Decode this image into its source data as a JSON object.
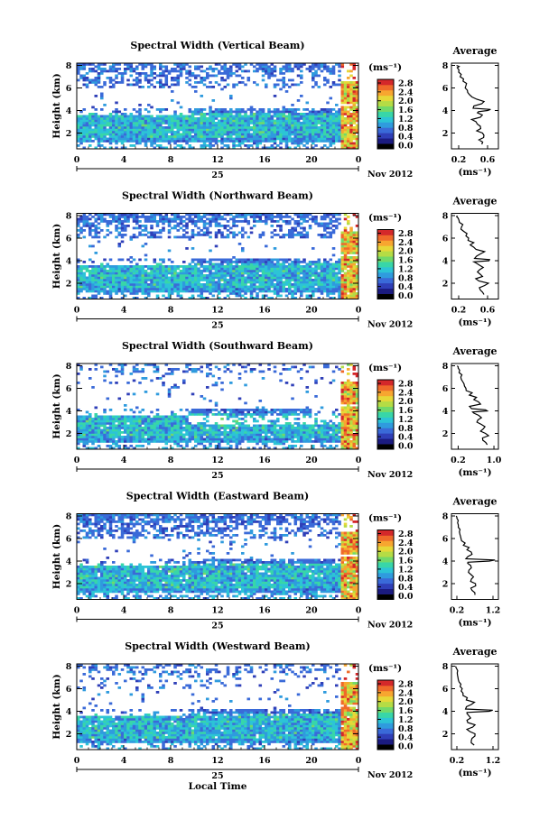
{
  "figure": {
    "date_label": "Nov 2012",
    "day_label": "25",
    "xlabel": "Local Time",
    "ylabel": "Height (km)",
    "unit_label": "(ms⁻¹)",
    "avg_title": "Average",
    "avg_xlabel": "(ms⁻¹)",
    "colormap": [
      "#000000",
      "#1b1b80",
      "#2f3fb8",
      "#3a6ad8",
      "#2f9bde",
      "#2cc4d6",
      "#38d6a8",
      "#72d96a",
      "#b5dc45",
      "#e6d838",
      "#f7a630",
      "#ef6a2a",
      "#d4282a"
    ],
    "colorbar_ticks": [
      "0.0",
      "0.4",
      "0.8",
      "1.2",
      "1.6",
      "2.0",
      "2.4",
      "2.8"
    ]
  },
  "chart_data": [
    {
      "type": "heatmap",
      "title": "Spectral Width (Vertical Beam)",
      "xlabel": "Local Time",
      "ylabel": "Height (km)",
      "x_ticks": [
        "0",
        "4",
        "8",
        "12",
        "16",
        "20",
        "0"
      ],
      "xlim": [
        0,
        24
      ],
      "y_ticks": [
        "2",
        "4",
        "6",
        "8"
      ],
      "ylim": [
        0.6,
        8.2
      ],
      "colorbar": {
        "label": "(ms⁻¹)",
        "range": [
          0.0,
          2.8
        ],
        "ticks": [
          "0.0",
          "0.4",
          "0.8",
          "1.2",
          "1.6",
          "2.0",
          "2.4",
          "2.8"
        ]
      },
      "average": {
        "title": "Average",
        "xlabel": "(ms⁻¹)",
        "x_ticks": [
          "0.2",
          "0.6"
        ],
        "xlim": [
          0.1,
          0.75
        ],
        "ylim": [
          0.6,
          8.2
        ],
        "profile": [
          [
            1.0,
            0.52
          ],
          [
            1.4,
            0.48
          ],
          [
            1.8,
            0.55
          ],
          [
            2.2,
            0.45
          ],
          [
            2.6,
            0.5
          ],
          [
            3.0,
            0.44
          ],
          [
            3.4,
            0.5
          ],
          [
            3.8,
            0.46
          ],
          [
            4.0,
            0.6
          ],
          [
            4.2,
            0.4
          ],
          [
            4.6,
            0.52
          ],
          [
            5.0,
            0.45
          ],
          [
            5.4,
            0.35
          ],
          [
            5.8,
            0.32
          ],
          [
            6.2,
            0.3
          ],
          [
            6.6,
            0.26
          ],
          [
            7.0,
            0.22
          ],
          [
            7.4,
            0.2
          ],
          [
            7.8,
            0.18
          ],
          [
            8.0,
            0.17
          ]
        ]
      }
    },
    {
      "type": "heatmap",
      "title": "Spectral Width (Northward Beam)",
      "xlabel": "Local Time",
      "ylabel": "Height (km)",
      "x_ticks": [
        "0",
        "4",
        "8",
        "12",
        "16",
        "20",
        "0"
      ],
      "xlim": [
        0,
        24
      ],
      "y_ticks": [
        "2",
        "4",
        "6",
        "8"
      ],
      "ylim": [
        0.6,
        8.2
      ],
      "colorbar": {
        "label": "(ms⁻¹)",
        "range": [
          0.0,
          2.8
        ],
        "ticks": [
          "0.0",
          "0.4",
          "0.8",
          "1.2",
          "1.6",
          "2.0",
          "2.4",
          "2.8"
        ]
      },
      "average": {
        "title": "Average",
        "xlabel": "(ms⁻¹)",
        "x_ticks": [
          "0.2",
          "0.6"
        ],
        "xlim": [
          0.1,
          0.75
        ],
        "ylim": [
          0.6,
          8.2
        ],
        "profile": [
          [
            1.0,
            0.55
          ],
          [
            1.4,
            0.5
          ],
          [
            1.8,
            0.56
          ],
          [
            2.2,
            0.48
          ],
          [
            2.6,
            0.53
          ],
          [
            3.0,
            0.46
          ],
          [
            3.4,
            0.54
          ],
          [
            3.8,
            0.44
          ],
          [
            4.0,
            0.62
          ],
          [
            4.2,
            0.42
          ],
          [
            4.6,
            0.5
          ],
          [
            5.0,
            0.44
          ],
          [
            5.4,
            0.36
          ],
          [
            5.8,
            0.33
          ],
          [
            6.2,
            0.3
          ],
          [
            6.6,
            0.27
          ],
          [
            7.0,
            0.24
          ],
          [
            7.4,
            0.21
          ],
          [
            7.8,
            0.19
          ],
          [
            8.0,
            0.18
          ]
        ]
      }
    },
    {
      "type": "heatmap",
      "title": "Spectral Width (Southward Beam)",
      "xlabel": "Local Time",
      "ylabel": "Height (km)",
      "x_ticks": [
        "0",
        "4",
        "8",
        "12",
        "16",
        "20",
        "0"
      ],
      "xlim": [
        0,
        24
      ],
      "y_ticks": [
        "2",
        "4",
        "6",
        "8"
      ],
      "ylim": [
        0.6,
        8.2
      ],
      "colorbar": {
        "label": "(ms⁻¹)",
        "range": [
          0.0,
          2.8
        ],
        "ticks": [
          "0.0",
          "0.4",
          "0.8",
          "1.2",
          "1.6",
          "2.0",
          "2.4",
          "2.8"
        ]
      },
      "average": {
        "title": "Average",
        "xlabel": "(ms⁻¹)",
        "x_ticks": [
          "0.2",
          "1.0"
        ],
        "xlim": [
          0.05,
          1.1
        ],
        "ylim": [
          0.6,
          8.2
        ],
        "profile": [
          [
            1.0,
            0.85
          ],
          [
            1.4,
            0.75
          ],
          [
            1.8,
            0.88
          ],
          [
            2.2,
            0.7
          ],
          [
            2.6,
            0.8
          ],
          [
            3.0,
            0.62
          ],
          [
            3.4,
            0.72
          ],
          [
            3.8,
            0.55
          ],
          [
            4.0,
            0.85
          ],
          [
            4.2,
            0.5
          ],
          [
            4.6,
            0.7
          ],
          [
            5.0,
            0.55
          ],
          [
            5.4,
            0.45
          ],
          [
            5.8,
            0.38
          ],
          [
            6.2,
            0.34
          ],
          [
            6.6,
            0.3
          ],
          [
            7.0,
            0.26
          ],
          [
            7.4,
            0.22
          ],
          [
            7.8,
            0.2
          ],
          [
            8.0,
            0.18
          ]
        ]
      }
    },
    {
      "type": "heatmap",
      "title": "Spectral Width (Eastward Beam)",
      "xlabel": "Local Time",
      "ylabel": "Height (km)",
      "x_ticks": [
        "0",
        "4",
        "8",
        "12",
        "16",
        "20",
        "0"
      ],
      "xlim": [
        0,
        24
      ],
      "y_ticks": [
        "2",
        "4",
        "6",
        "8"
      ],
      "ylim": [
        0.6,
        8.2
      ],
      "colorbar": {
        "label": "(ms⁻¹)",
        "range": [
          0.0,
          2.8
        ],
        "ticks": [
          "0.0",
          "0.4",
          "0.8",
          "1.2",
          "1.6",
          "2.0",
          "2.4",
          "2.8"
        ]
      },
      "average": {
        "title": "Average",
        "xlabel": "(ms⁻¹)",
        "x_ticks": [
          "0.2",
          "1.2"
        ],
        "xlim": [
          0.05,
          1.35
        ],
        "ylim": [
          0.6,
          8.2
        ],
        "profile": [
          [
            1.0,
            0.7
          ],
          [
            1.4,
            0.62
          ],
          [
            1.8,
            0.72
          ],
          [
            2.2,
            0.58
          ],
          [
            2.6,
            0.66
          ],
          [
            3.0,
            0.52
          ],
          [
            3.4,
            0.6
          ],
          [
            3.8,
            0.5
          ],
          [
            4.0,
            1.1
          ],
          [
            4.2,
            0.45
          ],
          [
            4.6,
            0.62
          ],
          [
            5.0,
            0.48
          ],
          [
            5.4,
            0.38
          ],
          [
            5.8,
            0.33
          ],
          [
            6.2,
            0.3
          ],
          [
            6.6,
            0.27
          ],
          [
            7.0,
            0.24
          ],
          [
            7.4,
            0.22
          ],
          [
            7.8,
            0.2
          ],
          [
            8.0,
            0.18
          ]
        ]
      }
    },
    {
      "type": "heatmap",
      "title": "Spectral Width (Westward Beam)",
      "xlabel": "Local Time",
      "ylabel": "Height (km)",
      "x_ticks": [
        "0",
        "4",
        "8",
        "12",
        "16",
        "20",
        "0"
      ],
      "xlim": [
        0,
        24
      ],
      "y_ticks": [
        "2",
        "4",
        "6",
        "8"
      ],
      "ylim": [
        0.6,
        8.2
      ],
      "colorbar": {
        "label": "(ms⁻¹)",
        "range": [
          0.0,
          2.8
        ],
        "ticks": [
          "0.0",
          "0.4",
          "0.8",
          "1.2",
          "1.6",
          "2.0",
          "2.4",
          "2.8"
        ]
      },
      "average": {
        "title": "Average",
        "xlabel": "(ms⁻¹)",
        "x_ticks": [
          "0.2",
          "1.2"
        ],
        "xlim": [
          0.05,
          1.35
        ],
        "ylim": [
          0.6,
          8.2
        ],
        "profile": [
          [
            1.0,
            0.68
          ],
          [
            1.4,
            0.6
          ],
          [
            1.8,
            0.7
          ],
          [
            2.2,
            0.56
          ],
          [
            2.6,
            0.64
          ],
          [
            3.0,
            0.5
          ],
          [
            3.4,
            0.58
          ],
          [
            3.8,
            0.48
          ],
          [
            4.0,
            1.1
          ],
          [
            4.2,
            0.44
          ],
          [
            4.6,
            0.6
          ],
          [
            5.0,
            0.46
          ],
          [
            5.4,
            0.37
          ],
          [
            5.8,
            0.32
          ],
          [
            6.2,
            0.29
          ],
          [
            6.6,
            0.26
          ],
          [
            7.0,
            0.23
          ],
          [
            7.4,
            0.21
          ],
          [
            7.8,
            0.19
          ],
          [
            8.0,
            0.17
          ]
        ]
      }
    }
  ]
}
